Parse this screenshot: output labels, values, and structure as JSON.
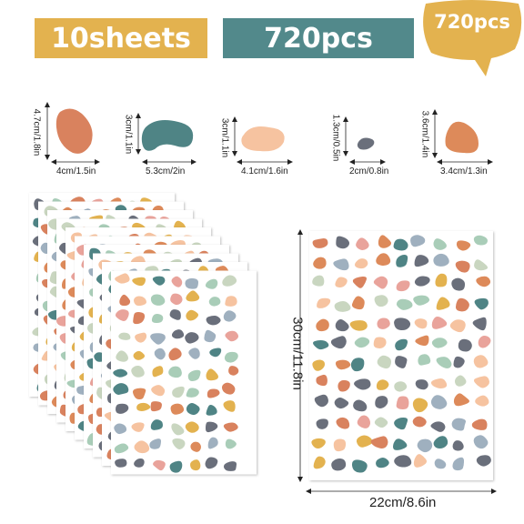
{
  "header": {
    "sheets_label": "10sheets",
    "pcs_label": "720pcs",
    "badge_label": "720pcs"
  },
  "colors": {
    "yellow": "#e3b24f",
    "teal": "#52898b",
    "terracotta": "#d9825e",
    "teal_dark": "#4f8485",
    "peach": "#f6c3a0",
    "slate": "#6a6f7b",
    "orange": "#dd8a5a"
  },
  "samples": [
    {
      "icon": "terracotta-blob-icon",
      "height_label": "4.7cm/1.8in",
      "width_label": "4cm/1.5in"
    },
    {
      "icon": "teal-blob-icon",
      "height_label": "3cm/1.1in",
      "width_label": "5.3cm/2in"
    },
    {
      "icon": "peach-blob-icon",
      "height_label": "3cm/1.1in",
      "width_label": "4.1cm/1.6in"
    },
    {
      "icon": "slate-blob-icon",
      "height_label": "1.3cm/0.5in",
      "width_label": "2cm/0.8in"
    },
    {
      "icon": "orange-blob-icon",
      "height_label": "3.6cm/1.4in",
      "width_label": "3.4cm/1.3in"
    }
  ],
  "sheet_size": {
    "height_label": "30cm/11.8in",
    "width_label": "22cm/8.6in"
  }
}
